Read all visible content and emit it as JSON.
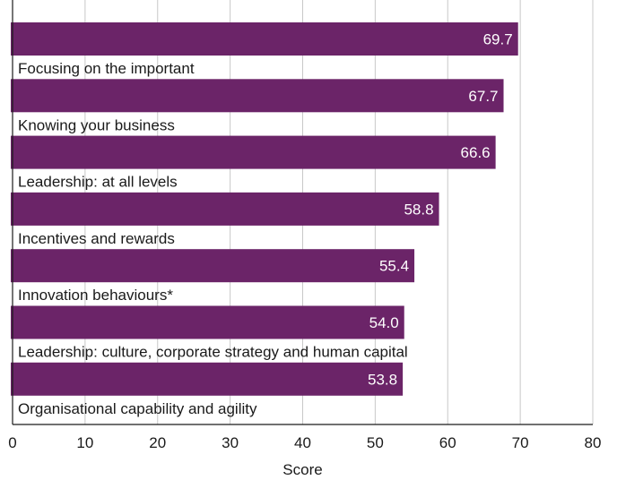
{
  "chart_data": {
    "type": "bar",
    "orientation": "horizontal",
    "categories": [
      "Focusing on the important",
      "Knowing your business",
      "Leadership: at all levels",
      "Incentives and rewards",
      "Innovation behaviours*",
      "Leadership: culture, corporate strategy and human capital",
      "Organisational capability and agility"
    ],
    "values": [
      69.7,
      67.7,
      66.6,
      58.8,
      55.4,
      54.0,
      53.8
    ],
    "value_labels": [
      "69.7",
      "67.7",
      "66.6",
      "58.8",
      "55.4",
      "54.0",
      "53.8"
    ],
    "title": "",
    "xlabel": "Score",
    "ylabel": "",
    "xlim": [
      0,
      80
    ],
    "xticks": [
      "0",
      "10",
      "20",
      "30",
      "40",
      "50",
      "60",
      "70",
      "80"
    ],
    "grid": "vertical",
    "bar_color": "#6b2468"
  }
}
